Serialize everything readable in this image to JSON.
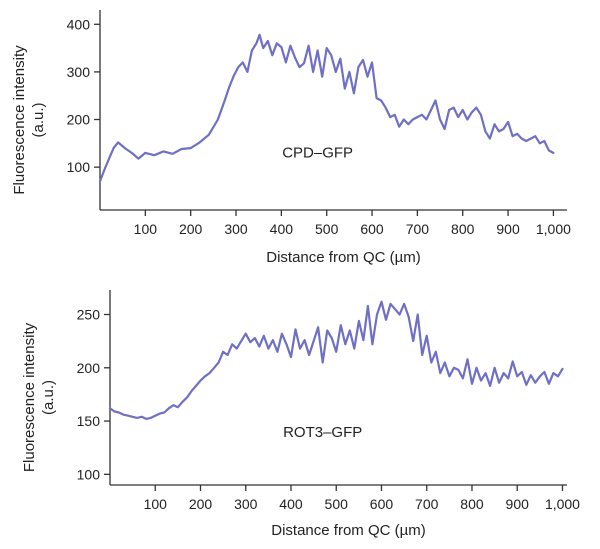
{
  "chart_data": [
    {
      "type": "line",
      "title": "",
      "xlabel": "Distance from QC (µm)",
      "ylabel_line1": "Fluorescence intensity",
      "ylabel_line2": "(a.u.)",
      "xlim": [
        0,
        1030
      ],
      "ylim": [
        10,
        430
      ],
      "xticks": [
        100,
        200,
        300,
        400,
        500,
        600,
        700,
        800,
        900,
        1000
      ],
      "xtick_labels": [
        "100",
        "200",
        "300",
        "400",
        "500",
        "600",
        "700",
        "800",
        "900",
        "1,000"
      ],
      "yticks": [
        100,
        200,
        300,
        400
      ],
      "ytick_labels": [
        "100",
        "200",
        "300",
        "400"
      ],
      "annotation": {
        "text": "CPD–GFP",
        "x": 480,
        "y": 120
      },
      "grid": false,
      "color": "#6f6fc4",
      "series": [
        {
          "x": [
            0,
            10,
            20,
            30,
            40,
            55,
            70,
            85,
            100,
            120,
            140,
            160,
            180,
            200,
            220,
            240,
            260,
            275,
            285,
            295,
            305,
            315,
            325,
            335,
            345,
            352,
            360,
            370,
            380,
            390,
            400,
            410,
            420,
            430,
            440,
            450,
            460,
            470,
            480,
            490,
            500,
            510,
            520,
            530,
            540,
            550,
            560,
            570,
            580,
            590,
            600,
            610,
            620,
            630,
            640,
            650,
            660,
            670,
            680,
            690,
            700,
            710,
            720,
            730,
            740,
            750,
            760,
            770,
            780,
            790,
            800,
            810,
            820,
            830,
            840,
            850,
            860,
            870,
            880,
            890,
            900,
            910,
            920,
            930,
            940,
            950,
            960,
            970,
            980,
            990,
            1000
          ],
          "y": [
            70,
            95,
            118,
            140,
            152,
            140,
            130,
            118,
            130,
            125,
            133,
            128,
            138,
            140,
            152,
            168,
            200,
            240,
            268,
            292,
            310,
            320,
            300,
            345,
            360,
            378,
            350,
            365,
            335,
            360,
            352,
            320,
            355,
            330,
            310,
            318,
            355,
            300,
            345,
            290,
            350,
            335,
            300,
            328,
            265,
            300,
            255,
            310,
            325,
            290,
            320,
            245,
            240,
            225,
            205,
            210,
            185,
            200,
            190,
            200,
            205,
            210,
            200,
            220,
            240,
            200,
            180,
            220,
            225,
            205,
            220,
            200,
            215,
            225,
            210,
            175,
            160,
            190,
            175,
            180,
            195,
            165,
            170,
            160,
            155,
            160,
            165,
            150,
            155,
            135,
            130
          ]
        }
      ]
    },
    {
      "type": "line",
      "title": "",
      "xlabel": "Distance from QC (µm)",
      "ylabel_line1": "Fluorescence intensity",
      "ylabel_line2": "(a.u.)",
      "xlim": [
        0,
        1010
      ],
      "ylim": [
        90,
        273
      ],
      "xticks": [
        100,
        200,
        300,
        400,
        500,
        600,
        700,
        800,
        900,
        1000
      ],
      "xtick_labels": [
        "100",
        "200",
        "300",
        "400",
        "500",
        "600",
        "700",
        "800",
        "900",
        "1,000"
      ],
      "yticks": [
        100,
        150,
        200,
        250
      ],
      "ytick_labels": [
        "100",
        "150",
        "200",
        "250"
      ],
      "annotation": {
        "text": "ROT3–GFP",
        "x": 470,
        "y": 135
      },
      "grid": false,
      "color": "#6f6fc4",
      "series": [
        {
          "x": [
            0,
            10,
            20,
            30,
            40,
            50,
            60,
            70,
            80,
            90,
            100,
            110,
            120,
            130,
            140,
            150,
            160,
            170,
            180,
            190,
            200,
            210,
            220,
            230,
            240,
            250,
            260,
            270,
            280,
            290,
            300,
            310,
            320,
            330,
            340,
            350,
            360,
            370,
            380,
            390,
            400,
            410,
            420,
            430,
            440,
            450,
            460,
            470,
            480,
            490,
            500,
            510,
            520,
            530,
            540,
            550,
            560,
            570,
            580,
            590,
            600,
            610,
            620,
            630,
            640,
            650,
            660,
            670,
            680,
            690,
            700,
            710,
            720,
            730,
            740,
            750,
            760,
            770,
            780,
            790,
            800,
            810,
            820,
            830,
            840,
            850,
            860,
            870,
            880,
            890,
            900,
            910,
            920,
            930,
            940,
            950,
            960,
            970,
            980,
            990,
            1000
          ],
          "y": [
            162,
            159,
            158,
            156,
            155,
            154,
            153,
            154,
            152,
            153,
            155,
            157,
            158,
            162,
            165,
            163,
            168,
            172,
            178,
            183,
            188,
            192,
            195,
            200,
            205,
            215,
            212,
            222,
            218,
            225,
            232,
            224,
            228,
            220,
            230,
            218,
            226,
            215,
            232,
            222,
            210,
            236,
            218,
            226,
            212,
            225,
            238,
            205,
            235,
            228,
            215,
            240,
            222,
            235,
            218,
            244,
            226,
            258,
            222,
            250,
            262,
            245,
            260,
            255,
            250,
            260,
            248,
            225,
            250,
            212,
            230,
            205,
            215,
            195,
            205,
            192,
            200,
            198,
            190,
            208,
            185,
            200,
            188,
            195,
            183,
            200,
            186,
            195,
            190,
            206,
            192,
            196,
            184,
            193,
            186,
            192,
            196,
            185,
            195,
            192,
            199
          ]
        }
      ]
    }
  ]
}
